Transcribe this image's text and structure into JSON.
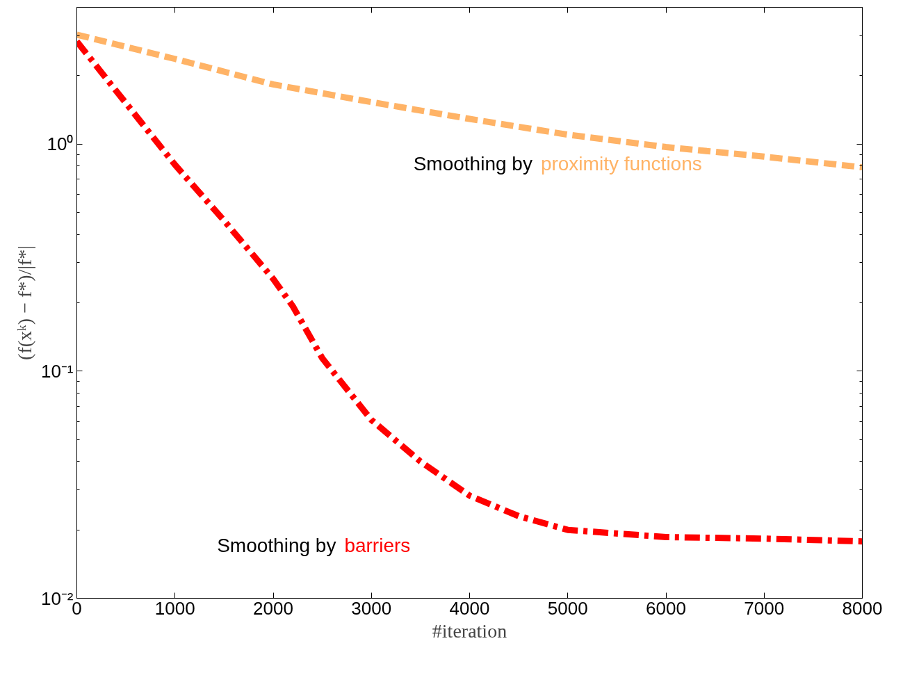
{
  "chart_data": {
    "type": "line",
    "xlabel": "#iteration",
    "ylabel": "(f(xᵏ) − f*)/|f*|",
    "log": "y",
    "grid": false,
    "marker": "none",
    "xlim": [
      0,
      8000
    ],
    "xticks": [
      0,
      1000,
      2000,
      3000,
      4000,
      5000,
      6000,
      7000,
      8000
    ],
    "ylim": [
      0.01,
      4
    ],
    "yticks": [
      {
        "value": 0.01,
        "label": "10⁻²"
      },
      {
        "value": 0.1,
        "label": "10⁻¹"
      },
      {
        "value": 1,
        "label": "10⁰"
      }
    ],
    "series": [
      {
        "name": "proximity functions",
        "color": "#ffb366",
        "line_style": "dashed",
        "x": [
          0,
          1000,
          2000,
          3000,
          4000,
          5000,
          6000,
          7000,
          8000
        ],
        "values": [
          3.03,
          2.37,
          1.83,
          1.53,
          1.29,
          1.1,
          0.97,
          0.88,
          0.79
        ]
      },
      {
        "name": "barriers",
        "color": "#ff0000",
        "line_style": "dashdot",
        "x": [
          0,
          1000,
          1500,
          2000,
          2200,
          2500,
          3000,
          3500,
          4000,
          4500,
          5000,
          6000,
          7000,
          8000
        ],
        "values": [
          2.83,
          0.81,
          0.46,
          0.255,
          0.193,
          0.114,
          0.061,
          0.04,
          0.0283,
          0.023,
          0.02,
          0.0186,
          0.0183,
          0.0178
        ]
      }
    ],
    "annotations": [
      "Smoothing by",
      "Smoothing by"
    ]
  }
}
